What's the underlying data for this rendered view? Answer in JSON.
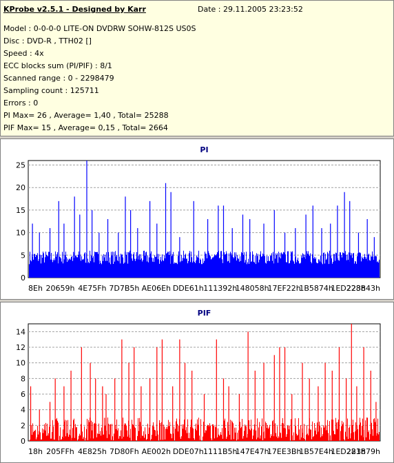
{
  "header": {
    "app_title": "KProbe v2.5.1 - Designed by Karr",
    "date_line": "Date : 29.11.2005 23:23:52"
  },
  "info_lines": [
    "Model : 0-0-0-0 LITE-ON DVDRW SOHW-812S  US0S",
    "Disc : DVD-R , TTH02 []",
    "Speed : 4x",
    "ECC blocks sum (PI/PIF) : 8/1",
    "Scanned range : 0 - 2298479",
    "Sampling count : 125711",
    "Errors : 0",
    "PI Max= 26 , Average= 1,40 , Total= 25288",
    "PIF Max= 15 , Average= 0,15 , Total= 2664"
  ],
  "chart_data": [
    {
      "type": "bar",
      "title": "PI",
      "color": "#0000ff",
      "ylim": [
        0,
        26
      ],
      "yticks": [
        0,
        5,
        10,
        15,
        20,
        25
      ],
      "grid": true,
      "x_tick_labels": [
        "8Eh",
        "20659h",
        "4E75Fh",
        "7D7B5h",
        "AE06Eh",
        "DDE61h",
        "111392h",
        "148058h",
        "17EF22h",
        "1B5874h",
        "1ED228h",
        "223843h"
      ],
      "x_range": [
        0,
        2298479
      ],
      "max": 26,
      "average": 1.4,
      "baseline_band": [
        3,
        6
      ],
      "spikes": [
        {
          "x": 0.01,
          "y": 12
        },
        {
          "x": 0.03,
          "y": 10
        },
        {
          "x": 0.06,
          "y": 11
        },
        {
          "x": 0.085,
          "y": 17
        },
        {
          "x": 0.1,
          "y": 12
        },
        {
          "x": 0.13,
          "y": 18
        },
        {
          "x": 0.145,
          "y": 14
        },
        {
          "x": 0.165,
          "y": 26
        },
        {
          "x": 0.18,
          "y": 15
        },
        {
          "x": 0.2,
          "y": 10
        },
        {
          "x": 0.225,
          "y": 13
        },
        {
          "x": 0.255,
          "y": 10
        },
        {
          "x": 0.275,
          "y": 18
        },
        {
          "x": 0.29,
          "y": 15
        },
        {
          "x": 0.31,
          "y": 11
        },
        {
          "x": 0.345,
          "y": 17
        },
        {
          "x": 0.365,
          "y": 12
        },
        {
          "x": 0.39,
          "y": 21
        },
        {
          "x": 0.405,
          "y": 19
        },
        {
          "x": 0.43,
          "y": 9
        },
        {
          "x": 0.47,
          "y": 17
        },
        {
          "x": 0.51,
          "y": 13
        },
        {
          "x": 0.54,
          "y": 16
        },
        {
          "x": 0.555,
          "y": 16
        },
        {
          "x": 0.58,
          "y": 11
        },
        {
          "x": 0.61,
          "y": 14
        },
        {
          "x": 0.63,
          "y": 13
        },
        {
          "x": 0.67,
          "y": 12
        },
        {
          "x": 0.7,
          "y": 15
        },
        {
          "x": 0.73,
          "y": 10
        },
        {
          "x": 0.76,
          "y": 11
        },
        {
          "x": 0.79,
          "y": 14
        },
        {
          "x": 0.81,
          "y": 16
        },
        {
          "x": 0.835,
          "y": 11
        },
        {
          "x": 0.86,
          "y": 12
        },
        {
          "x": 0.88,
          "y": 16
        },
        {
          "x": 0.9,
          "y": 19
        },
        {
          "x": 0.915,
          "y": 17
        },
        {
          "x": 0.94,
          "y": 10
        },
        {
          "x": 0.965,
          "y": 13
        },
        {
          "x": 0.985,
          "y": 9
        }
      ]
    },
    {
      "type": "bar",
      "title": "PIF",
      "color": "#ff0000",
      "ylim": [
        0,
        15
      ],
      "yticks": [
        0,
        2,
        4,
        6,
        8,
        10,
        12,
        14
      ],
      "grid": true,
      "x_tick_labels": [
        "18h",
        "205FFh",
        "4E825h",
        "7D80Fh",
        "AE002h",
        "DDE07h",
        "1111B5h",
        "147E47h",
        "17EE3Bh",
        "1B57E4h",
        "1ED281h",
        "223879h"
      ],
      "x_range": [
        0,
        2298479
      ],
      "max": 15,
      "average": 0.15,
      "baseline_band": [
        0,
        3
      ],
      "spikes": [
        {
          "x": 0.005,
          "y": 7
        },
        {
          "x": 0.03,
          "y": 4
        },
        {
          "x": 0.06,
          "y": 5
        },
        {
          "x": 0.075,
          "y": 8
        },
        {
          "x": 0.1,
          "y": 7
        },
        {
          "x": 0.12,
          "y": 9
        },
        {
          "x": 0.15,
          "y": 12
        },
        {
          "x": 0.175,
          "y": 10
        },
        {
          "x": 0.19,
          "y": 8
        },
        {
          "x": 0.21,
          "y": 7
        },
        {
          "x": 0.22,
          "y": 6
        },
        {
          "x": 0.245,
          "y": 8
        },
        {
          "x": 0.265,
          "y": 13
        },
        {
          "x": 0.285,
          "y": 10
        },
        {
          "x": 0.3,
          "y": 12
        },
        {
          "x": 0.32,
          "y": 7
        },
        {
          "x": 0.345,
          "y": 8
        },
        {
          "x": 0.365,
          "y": 12
        },
        {
          "x": 0.38,
          "y": 13
        },
        {
          "x": 0.41,
          "y": 7
        },
        {
          "x": 0.43,
          "y": 13
        },
        {
          "x": 0.445,
          "y": 10
        },
        {
          "x": 0.465,
          "y": 9
        },
        {
          "x": 0.5,
          "y": 6
        },
        {
          "x": 0.535,
          "y": 13
        },
        {
          "x": 0.555,
          "y": 8
        },
        {
          "x": 0.57,
          "y": 7
        },
        {
          "x": 0.6,
          "y": 6
        },
        {
          "x": 0.625,
          "y": 14
        },
        {
          "x": 0.645,
          "y": 9
        },
        {
          "x": 0.67,
          "y": 10
        },
        {
          "x": 0.7,
          "y": 11
        },
        {
          "x": 0.715,
          "y": 12
        },
        {
          "x": 0.73,
          "y": 12
        },
        {
          "x": 0.75,
          "y": 6
        },
        {
          "x": 0.78,
          "y": 10
        },
        {
          "x": 0.8,
          "y": 8
        },
        {
          "x": 0.825,
          "y": 7
        },
        {
          "x": 0.845,
          "y": 10
        },
        {
          "x": 0.865,
          "y": 9
        },
        {
          "x": 0.885,
          "y": 12
        },
        {
          "x": 0.905,
          "y": 8
        },
        {
          "x": 0.92,
          "y": 15
        },
        {
          "x": 0.935,
          "y": 7
        },
        {
          "x": 0.955,
          "y": 12
        },
        {
          "x": 0.975,
          "y": 9
        },
        {
          "x": 0.99,
          "y": 5
        }
      ]
    }
  ]
}
